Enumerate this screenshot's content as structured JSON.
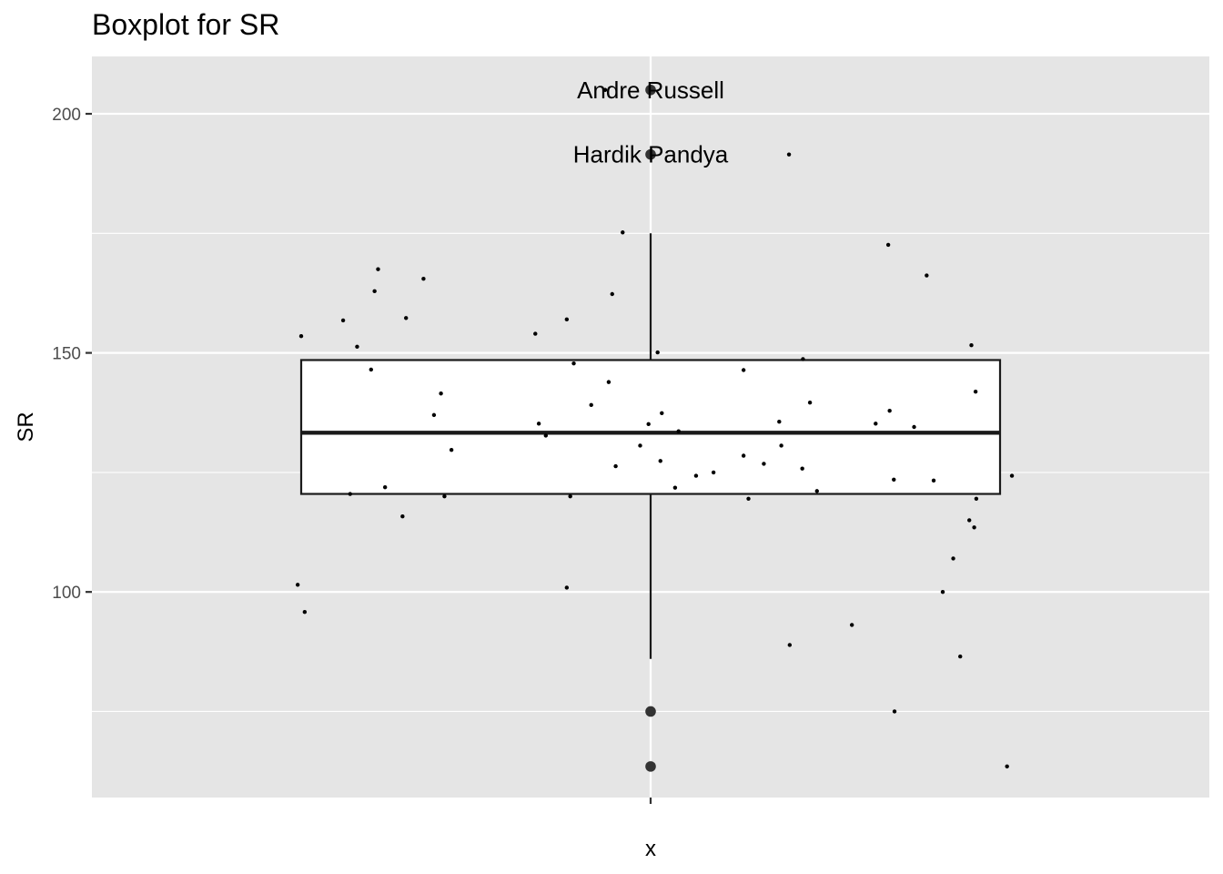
{
  "chart_data": {
    "type": "boxplot",
    "title": "Boxplot for SR",
    "xlabel": "x",
    "ylabel": "SR",
    "x_categories": [
      ""
    ],
    "ylim": [
      57,
      212
    ],
    "y_ticks": [
      100,
      150,
      200
    ],
    "y_tick_labels": [
      "100",
      "150",
      "200"
    ],
    "grid": true,
    "colors": {
      "panel_background": "#e5e5e5",
      "grid": "#ffffff",
      "box_fill": "#ffffff",
      "box_line": "#1a1a1a",
      "points": "#000000",
      "outliers": "#333333"
    },
    "box": {
      "lower_whisker": 86,
      "q1": 120.5,
      "median": 133.3,
      "q3": 148.5,
      "upper_whisker": 175
    },
    "outliers": [
      205,
      191.5,
      75,
      63.5
    ],
    "outlier_labels": [
      {
        "label": "Andre Russell",
        "value": 205
      },
      {
        "label": "Hardik Pandya",
        "value": 191.5
      }
    ],
    "jitter_points": [
      {
        "x": -0.5,
        "y": 153.5
      },
      {
        "x": -0.44,
        "y": 156.8
      },
      {
        "x": -0.42,
        "y": 151.3
      },
      {
        "x": -0.395,
        "y": 162.9
      },
      {
        "x": -0.39,
        "y": 167.5
      },
      {
        "x": -0.35,
        "y": 157.3
      },
      {
        "x": -0.325,
        "y": 165.5
      },
      {
        "x": -0.3,
        "y": 141.5
      },
      {
        "x": -0.4,
        "y": 146.5
      },
      {
        "x": -0.31,
        "y": 137
      },
      {
        "x": -0.285,
        "y": 129.7
      },
      {
        "x": -0.38,
        "y": 121.9
      },
      {
        "x": -0.43,
        "y": 120.5
      },
      {
        "x": -0.295,
        "y": 120
      },
      {
        "x": -0.355,
        "y": 115.8
      },
      {
        "x": -0.505,
        "y": 101.5
      },
      {
        "x": -0.495,
        "y": 95.8
      },
      {
        "x": -0.165,
        "y": 154
      },
      {
        "x": -0.12,
        "y": 157
      },
      {
        "x": -0.055,
        "y": 162.3
      },
      {
        "x": -0.04,
        "y": 175.2
      },
      {
        "x": -0.065,
        "y": 205
      },
      {
        "x": -0.11,
        "y": 147.8
      },
      {
        "x": -0.06,
        "y": 143.9
      },
      {
        "x": -0.085,
        "y": 139.1
      },
      {
        "x": -0.16,
        "y": 135.2
      },
      {
        "x": -0.15,
        "y": 132.7
      },
      {
        "x": -0.05,
        "y": 126.3
      },
      {
        "x": -0.015,
        "y": 130.6
      },
      {
        "x": -0.003,
        "y": 135.1
      },
      {
        "x": 0.01,
        "y": 150.1
      },
      {
        "x": 0.016,
        "y": 137.4
      },
      {
        "x": 0.04,
        "y": 133.6
      },
      {
        "x": 0.014,
        "y": 127.4
      },
      {
        "x": 0.035,
        "y": 121.8
      },
      {
        "x": 0.065,
        "y": 124.3
      },
      {
        "x": 0.09,
        "y": 125
      },
      {
        "x": -0.115,
        "y": 120
      },
      {
        "x": -0.12,
        "y": 100.9
      },
      {
        "x": 0.133,
        "y": 146.4
      },
      {
        "x": 0.133,
        "y": 128.5
      },
      {
        "x": 0.14,
        "y": 119.5
      },
      {
        "x": 0.162,
        "y": 126.8
      },
      {
        "x": 0.184,
        "y": 135.6
      },
      {
        "x": 0.187,
        "y": 130.6
      },
      {
        "x": 0.198,
        "y": 191.5
      },
      {
        "x": 0.218,
        "y": 148.7
      },
      {
        "x": 0.228,
        "y": 139.6
      },
      {
        "x": 0.217,
        "y": 125.8
      },
      {
        "x": 0.238,
        "y": 121.1
      },
      {
        "x": 0.199,
        "y": 88.9
      },
      {
        "x": 0.288,
        "y": 93.1
      },
      {
        "x": 0.322,
        "y": 135.2
      },
      {
        "x": 0.34,
        "y": 172.6
      },
      {
        "x": 0.342,
        "y": 137.9
      },
      {
        "x": 0.348,
        "y": 123.5
      },
      {
        "x": 0.377,
        "y": 134.5
      },
      {
        "x": 0.395,
        "y": 166.2
      },
      {
        "x": 0.405,
        "y": 123.3
      },
      {
        "x": 0.418,
        "y": 100
      },
      {
        "x": 0.433,
        "y": 107
      },
      {
        "x": 0.443,
        "y": 86.5
      },
      {
        "x": 0.456,
        "y": 115
      },
      {
        "x": 0.459,
        "y": 151.6
      },
      {
        "x": 0.463,
        "y": 113.5
      },
      {
        "x": 0.465,
        "y": 141.9
      },
      {
        "x": 0.466,
        "y": 119.5
      },
      {
        "x": 0.517,
        "y": 124.3
      },
      {
        "x": 0.349,
        "y": 75
      },
      {
        "x": 0.51,
        "y": 63.5
      }
    ]
  }
}
